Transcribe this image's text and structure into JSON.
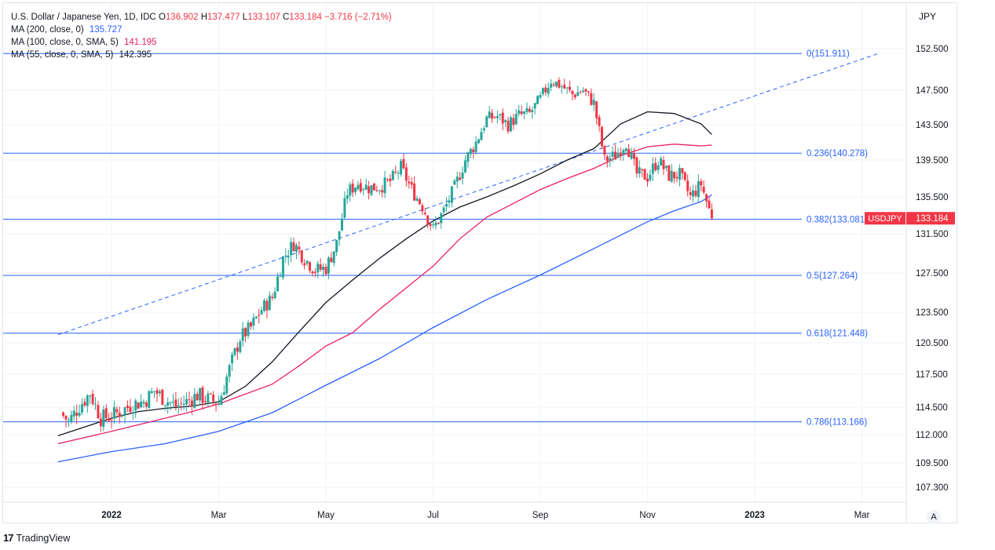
{
  "legend": {
    "symbol": "U.S. Dollar / Japanese Yen, 1D, IDC",
    "open_label": "O",
    "open": "136.902",
    "high_label": "H",
    "high": "137.477",
    "low_label": "L",
    "low": "133.107",
    "close_label": "C",
    "close": "133.184",
    "change": "−3.716 (−2.71%)",
    "ma200_label": "MA (200, close, 0)",
    "ma200_value": "135.727",
    "ma100_label": "MA (100, close, 0, SMA, 5)",
    "ma100_value": "141.195",
    "ma55_label": "MA (55, close, 0, SMA, 5)",
    "ma55_value": "142.395"
  },
  "axis_unit": "JPY",
  "auto_button": "A",
  "brand": {
    "logo": "17",
    "name": "TradingView"
  },
  "price_tag": {
    "symbol": "USDJPY",
    "value": "133.184"
  },
  "colors": {
    "up": "#26a69a",
    "down": "#f23645",
    "ma200": "#2962ff",
    "ma100": "#e91e63",
    "ma55": "#131722",
    "fib": "#2962ff",
    "trend": "#2962ff"
  },
  "chart_data": {
    "type": "candlestick",
    "title": "U.S. Dollar / Japanese Yen, 1D, IDC",
    "ylabel": "JPY",
    "y_ticks": [
      152.5,
      147.5,
      143.5,
      139.5,
      135.5,
      131.5,
      127.5,
      123.5,
      120.5,
      117.5,
      114.5,
      112.0,
      109.5,
      107.3
    ],
    "y_tick_labels": [
      "152.500",
      "147.500",
      "143.500",
      "139.500",
      "135.500",
      "131.500",
      "127.500",
      "123.500",
      "120.500",
      "117.500",
      "114.500",
      "112.000",
      "109.500",
      "107.300"
    ],
    "x_tick_labels": [
      {
        "label": "2022",
        "month_index": 0
      },
      {
        "label": "Mar",
        "month_index": 2
      },
      {
        "label": "May",
        "month_index": 4
      },
      {
        "label": "Jul",
        "month_index": 6
      },
      {
        "label": "Sep",
        "month_index": 8
      },
      {
        "label": "Nov",
        "month_index": 10
      },
      {
        "label": "2023",
        "month_index": 12
      },
      {
        "label": "Mar",
        "month_index": 14
      }
    ],
    "x_start_month_index": -1,
    "x_end_month_index": 15,
    "price_series_monthly_index": [
      -0.95,
      -0.8,
      -0.6,
      -0.4,
      -0.2,
      0,
      0.2,
      0.4,
      0.6,
      0.8,
      1,
      1.2,
      1.4,
      1.6,
      1.8,
      2,
      2.2,
      2.4,
      2.6,
      2.8,
      3,
      3.2,
      3.4,
      3.6,
      3.8,
      4,
      4.2,
      4.4,
      4.6,
      4.8,
      5,
      5.2,
      5.4,
      5.6,
      5.8,
      6,
      6.2,
      6.4,
      6.6,
      6.8,
      7,
      7.2,
      7.4,
      7.6,
      7.8,
      8,
      8.2,
      8.4,
      8.6,
      8.8,
      9,
      9.2,
      9.4,
      9.6,
      9.8,
      10,
      10.2,
      10.4,
      10.6,
      10.8,
      11,
      11.2
    ],
    "price_close": [
      114.0,
      113.2,
      114.6,
      115.8,
      113.5,
      113.7,
      114.2,
      114.8,
      115.0,
      116.0,
      115.2,
      114.6,
      115.0,
      115.6,
      115.2,
      114.9,
      118.0,
      121.0,
      122.0,
      123.8,
      125.0,
      129.0,
      130.5,
      129.0,
      127.8,
      128.0,
      130.5,
      136.0,
      137.0,
      136.5,
      136.6,
      137.2,
      138.7,
      136.3,
      134.5,
      132.0,
      134.0,
      136.5,
      139.5,
      141.5,
      144.2,
      144.5,
      143.5,
      144.6,
      144.8,
      146.5,
      148.7,
      148.0,
      147.0,
      147.5,
      146.0,
      139.5,
      140.0,
      141.5,
      138.0,
      137.7,
      139.5,
      137.8,
      137.9,
      135.5,
      136.9,
      133.184
    ],
    "fib_levels": [
      {
        "label": "0(151.911)",
        "value": 151.911
      },
      {
        "label": "0.236(140.278)",
        "value": 140.278
      },
      {
        "label": "0.382(133.081)",
        "value": 133.081
      },
      {
        "label": "0.5(127.264)",
        "value": 127.264
      },
      {
        "label": "0.618(121.448)",
        "value": 121.448
      },
      {
        "label": "0.786(113.166)",
        "value": 113.166
      }
    ],
    "ma_lines": [
      {
        "name": "MA (200, close, 0)",
        "color": "#2962ff",
        "points": [
          [
            -1,
            109.6
          ],
          [
            0,
            110.5
          ],
          [
            1,
            111.2
          ],
          [
            2,
            112.3
          ],
          [
            3,
            114.0
          ],
          [
            4,
            116.5
          ],
          [
            5,
            119.0
          ],
          [
            6,
            122.0
          ],
          [
            7,
            124.8
          ],
          [
            8,
            127.3
          ],
          [
            9,
            130.0
          ],
          [
            10,
            132.8
          ],
          [
            10.5,
            134.0
          ],
          [
            11.0,
            135.0
          ],
          [
            11.2,
            135.727
          ]
        ]
      },
      {
        "name": "MA (100, close, 0, SMA, 5)",
        "color": "#e91e63",
        "points": [
          [
            -1,
            111.2
          ],
          [
            0,
            112.3
          ],
          [
            1,
            113.5
          ],
          [
            1.5,
            114.1
          ],
          [
            2,
            114.8
          ],
          [
            3,
            116.6
          ],
          [
            3.5,
            118.3
          ],
          [
            4,
            120.2
          ],
          [
            4.5,
            121.5
          ],
          [
            5,
            123.8
          ],
          [
            5.5,
            126.0
          ],
          [
            6,
            128.2
          ],
          [
            6.5,
            131.0
          ],
          [
            7,
            133.3
          ],
          [
            7.5,
            134.8
          ],
          [
            8,
            136.3
          ],
          [
            8.5,
            137.5
          ],
          [
            9,
            138.6
          ],
          [
            9.5,
            140.0
          ],
          [
            10,
            141.0
          ],
          [
            10.5,
            141.3
          ],
          [
            11,
            141.1
          ],
          [
            11.2,
            141.195
          ]
        ]
      },
      {
        "name": "MA (55, close, 0, SMA, 5)",
        "color": "#131722",
        "points": [
          [
            -1,
            111.9
          ],
          [
            0,
            113.5
          ],
          [
            0.5,
            114.1
          ],
          [
            1,
            114.4
          ],
          [
            1.5,
            114.6
          ],
          [
            2,
            115.0
          ],
          [
            2.5,
            116.4
          ],
          [
            3,
            118.7
          ],
          [
            3.5,
            121.6
          ],
          [
            4,
            124.5
          ],
          [
            4.5,
            126.8
          ],
          [
            5,
            129.0
          ],
          [
            5.5,
            131.0
          ],
          [
            6,
            132.9
          ],
          [
            6.5,
            134.4
          ],
          [
            7,
            135.5
          ],
          [
            7.5,
            136.7
          ],
          [
            8,
            138.0
          ],
          [
            8.5,
            139.5
          ],
          [
            9,
            140.8
          ],
          [
            9.5,
            143.6
          ],
          [
            10,
            145.0
          ],
          [
            10.5,
            144.8
          ],
          [
            11,
            143.6
          ],
          [
            11.2,
            142.395
          ]
        ]
      }
    ],
    "trendline": {
      "from": [
        -1,
        121.3
      ],
      "to": [
        14.3,
        151.9
      ]
    }
  }
}
